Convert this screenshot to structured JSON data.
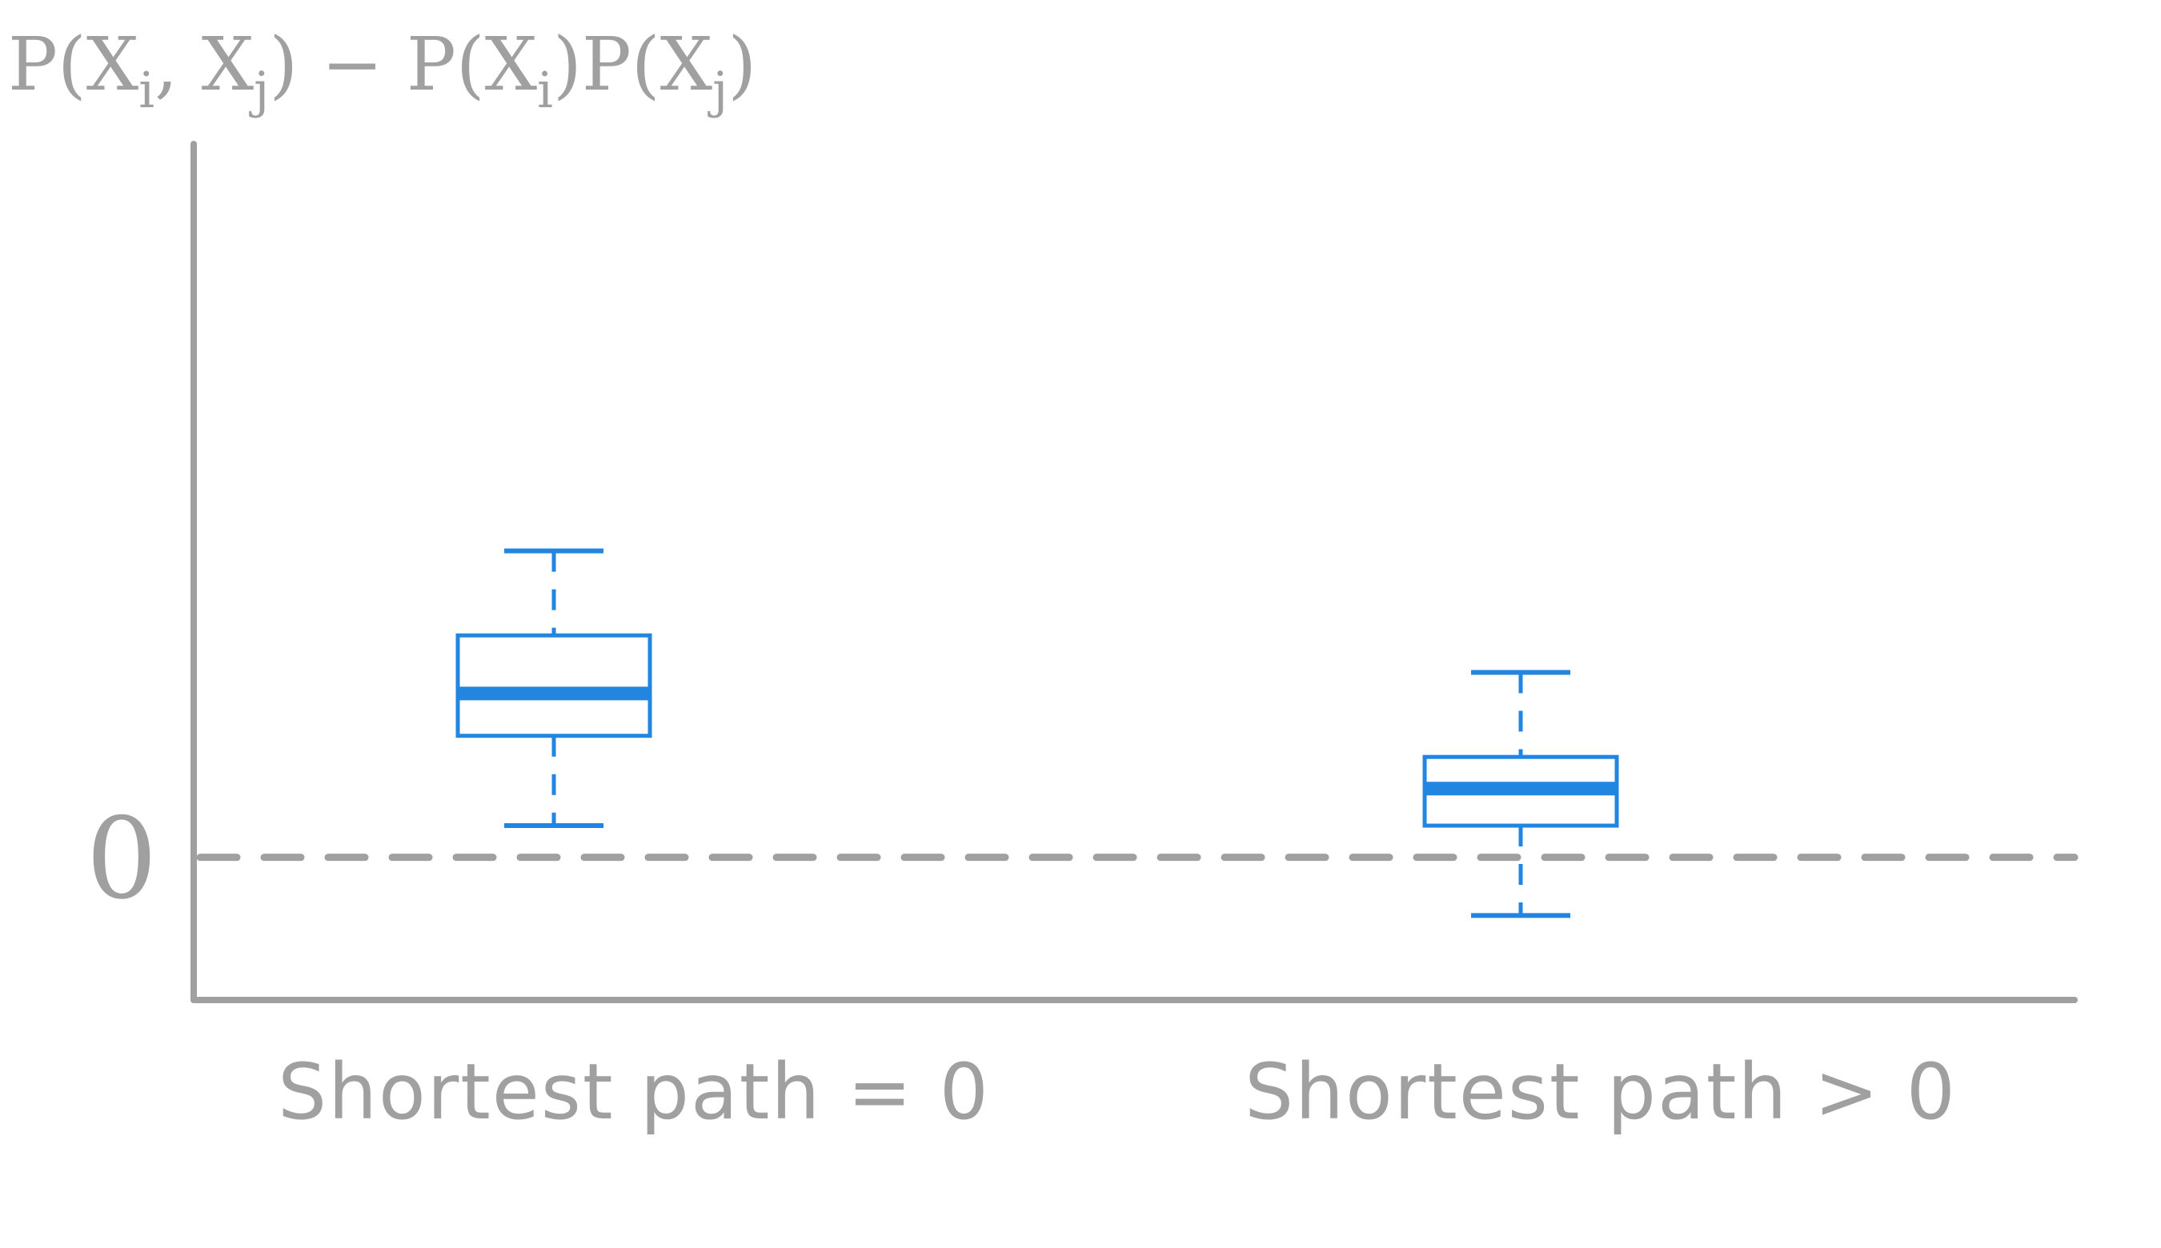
{
  "chart_data": {
    "type": "box",
    "ylabel": {
      "parts": [
        {
          "t": "P(X",
          "sub": false
        },
        {
          "t": "i",
          "sub": true
        },
        {
          "t": ", X",
          "sub": false
        },
        {
          "t": "j",
          "sub": true
        },
        {
          "t": ") − P(X",
          "sub": false
        },
        {
          "t": "i",
          "sub": true
        },
        {
          "t": ")P(X",
          "sub": false
        },
        {
          "t": "j",
          "sub": true
        },
        {
          "t": ")",
          "sub": false
        }
      ]
    },
    "yticks": [
      {
        "value": 0,
        "label": "0"
      }
    ],
    "ylim": [
      -0.27,
      1.35
    ],
    "reference_line": {
      "y": 0,
      "style": "dashed"
    },
    "categories": [
      "Shortest path = 0",
      "Shortest path > 0"
    ],
    "boxes": [
      {
        "category": "Shortest path = 0",
        "whisker_low": 0.06,
        "q1": 0.23,
        "median": 0.31,
        "q3": 0.42,
        "whisker_high": 0.58
      },
      {
        "category": "Shortest path > 0",
        "whisker_low": -0.11,
        "q1": 0.06,
        "median": 0.13,
        "q3": 0.19,
        "whisker_high": 0.35
      }
    ],
    "grid": false,
    "colors": {
      "box": "#2285e0",
      "axis": "#a0a0a0",
      "reference": "#a0a0a0",
      "text": "#a0a0a0"
    }
  }
}
